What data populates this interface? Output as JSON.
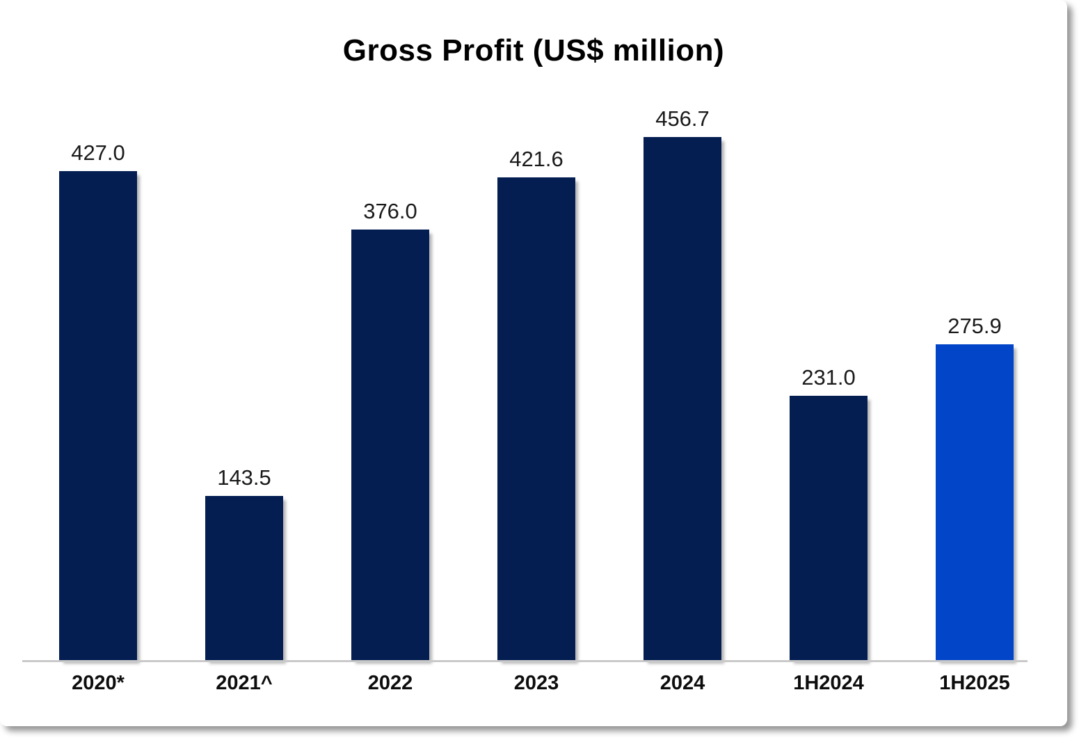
{
  "colors": {
    "bar_navy": "#041e52",
    "bar_highlight": "#0345c8",
    "axis_line": "#c9c9c9",
    "label_text": "#1a1a1a"
  },
  "chart_data": {
    "type": "bar",
    "title": "Gross Profit (US$ million)",
    "categories": [
      "2020*",
      "2021^",
      "2022",
      "2023",
      "2024",
      "1H2024",
      "1H2025"
    ],
    "values": [
      427.0,
      143.5,
      376.0,
      421.6,
      456.7,
      231.0,
      275.9
    ],
    "value_labels": [
      "427.0",
      "143.5",
      "376.0",
      "421.6",
      "456.7",
      "231.0",
      "275.9"
    ],
    "highlight_index": 6,
    "highlight_category": "1H2025",
    "xlabel": "",
    "ylabel": "",
    "ylim": [
      0,
      480
    ],
    "grid": false,
    "legend": "none",
    "data_labels": "above-bars"
  }
}
